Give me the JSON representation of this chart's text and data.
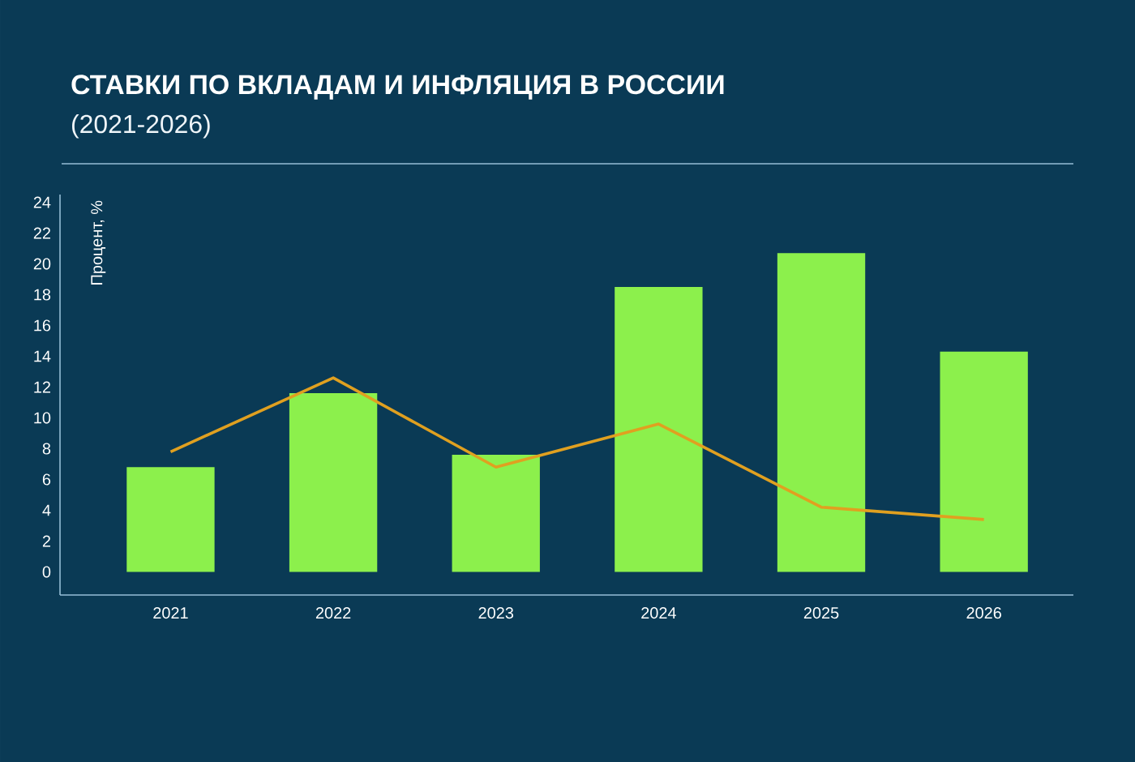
{
  "chart_data": {
    "type": "bar",
    "title": "СТАВКИ ПО ВКЛАДАМ И ИНФЛЯЦИЯ В РОССИИ",
    "subtitle": "(2021-2026)",
    "ylabel": "Процент, %",
    "categories": [
      "2021",
      "2022",
      "2023",
      "2024",
      "2025",
      "2026"
    ],
    "series": [
      {
        "color": "#8cf04c",
        "values": [
          6.8,
          11.6,
          7.6,
          18.5,
          20.7,
          14.3
        ]
      },
      {
        "type": "line",
        "color": "#e0a020",
        "values": [
          7.8,
          12.6,
          6.8,
          9.6,
          4.2,
          3.4
        ]
      }
    ],
    "ylim": [
      -1.5,
      24.5
    ],
    "yticks": [
      0,
      2,
      4,
      6,
      8,
      10,
      12,
      14,
      16,
      18,
      20,
      22,
      24
    ]
  }
}
